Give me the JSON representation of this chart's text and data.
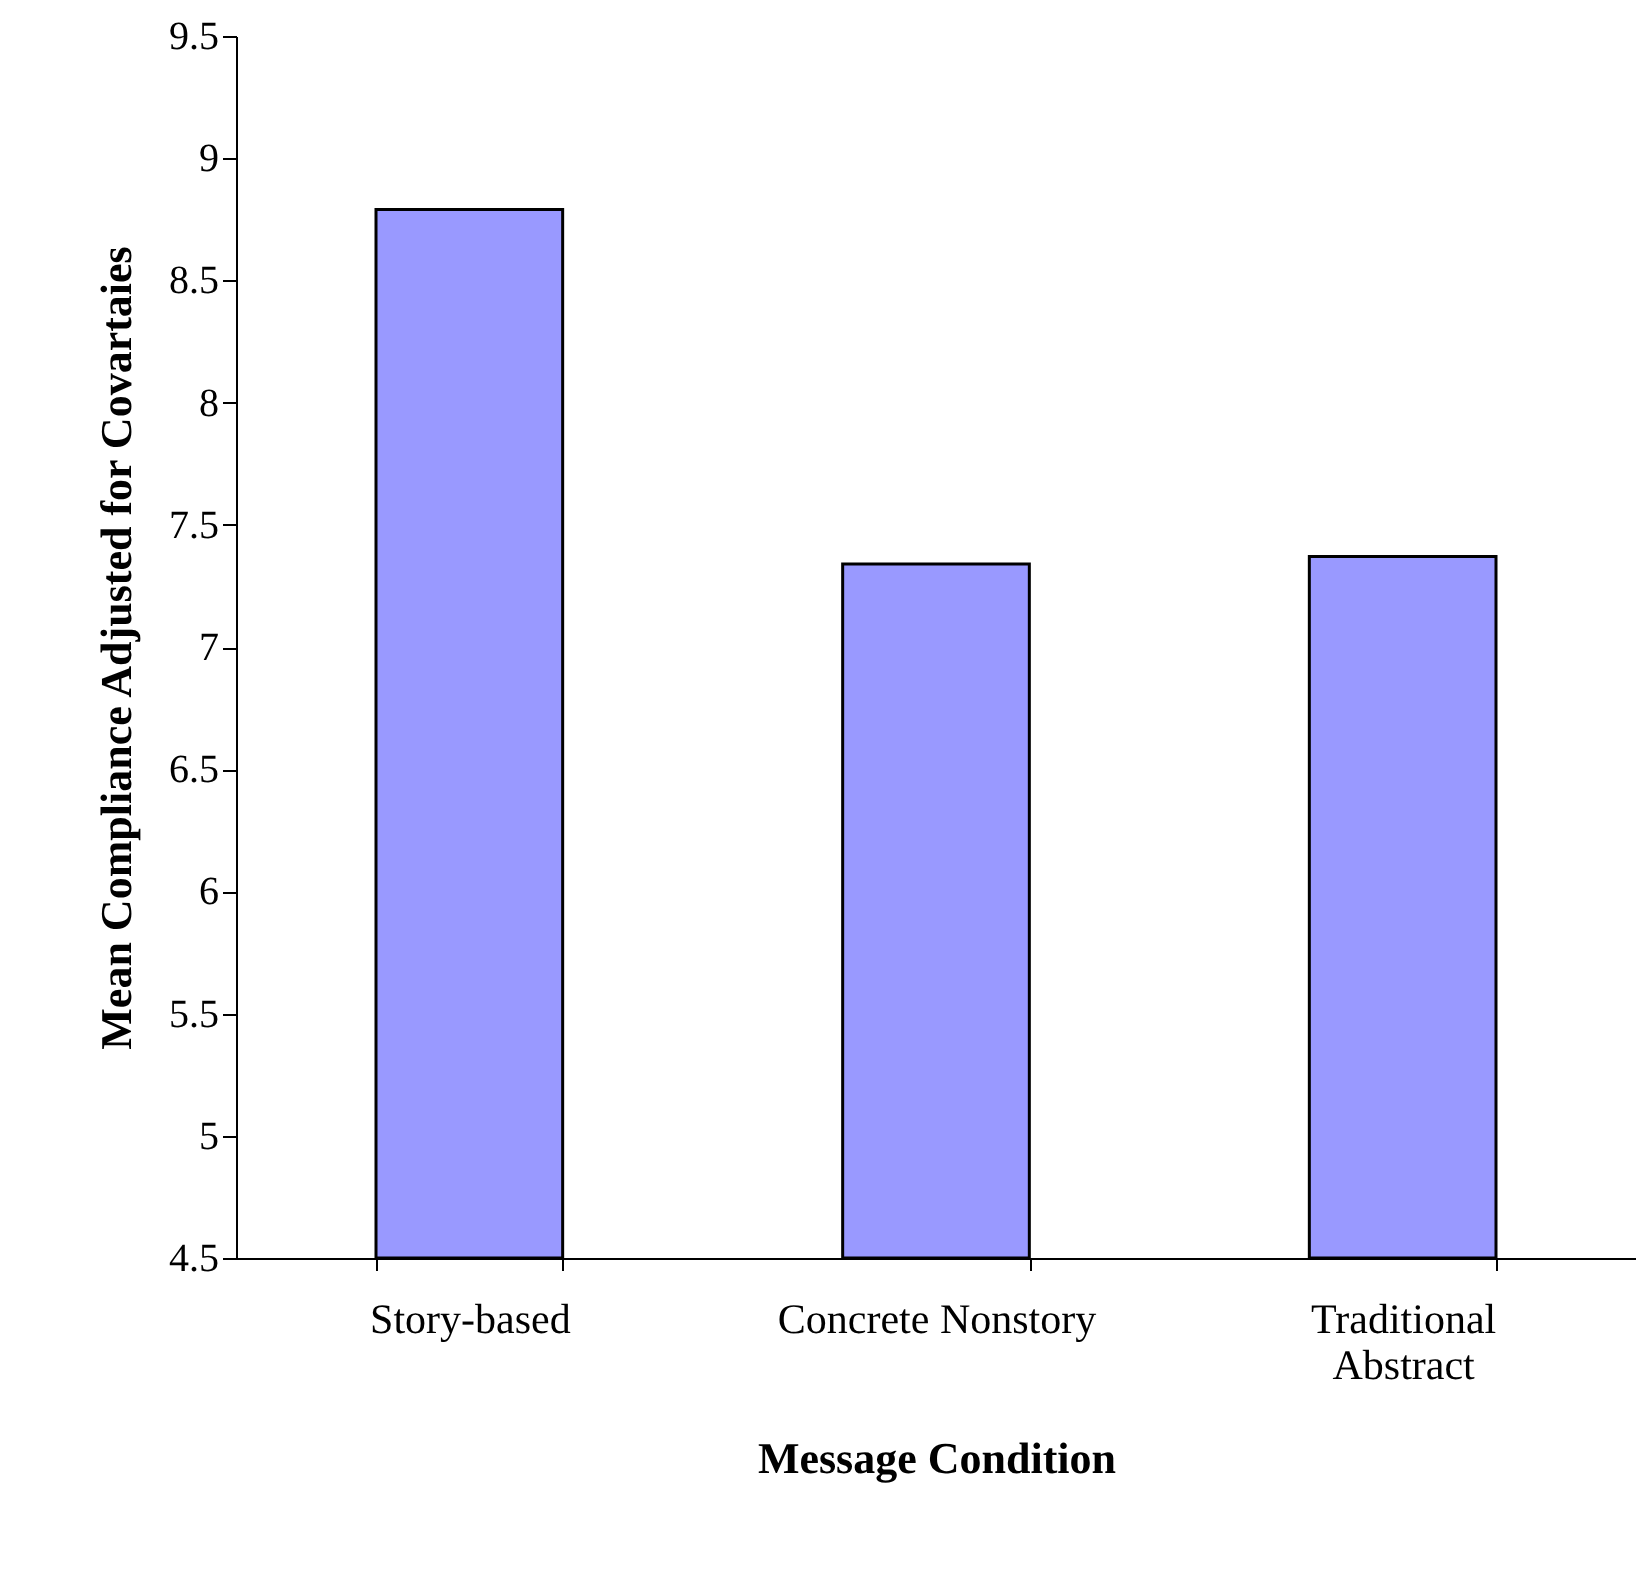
{
  "chart_data": {
    "type": "bar",
    "xlabel": "Message Condition",
    "ylabel": "Mean Compliance Adjusted for Covartaies",
    "categories": [
      "Story-based",
      "Concrete Nonstory",
      "Traditional Abstract"
    ],
    "values": [
      8.79,
      7.34,
      7.37
    ],
    "color": "#9999ff",
    "ylim": [
      4.5,
      9.5
    ],
    "yticks": [
      4.5,
      5,
      5.5,
      6,
      6.5,
      7,
      7.5,
      8,
      8.5,
      9,
      9.5
    ],
    "grid": false
  }
}
